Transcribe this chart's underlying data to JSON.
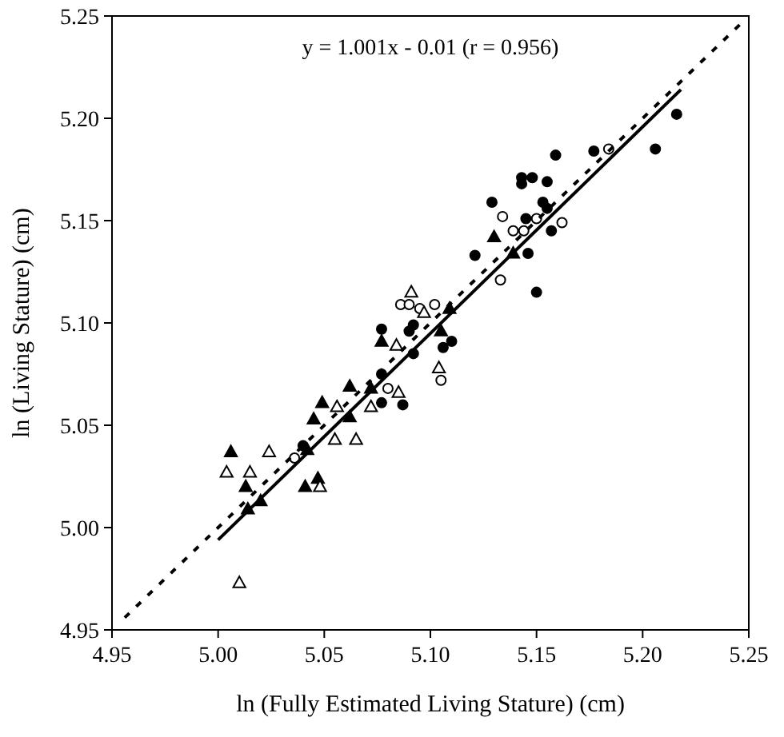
{
  "chart_data": {
    "type": "scatter",
    "xlabel": "ln (Fully Estimated Living Stature) (cm)",
    "ylabel": "ln (Living Stature) (cm)",
    "annotations": [
      "y = 1.001x - 0.01 (r = 0.956)"
    ],
    "xlim": [
      4.95,
      5.25
    ],
    "ylim": [
      4.95,
      5.25
    ],
    "xticks": [
      4.95,
      {
        "value": 5.0,
        "label": "5.00"
      },
      5.05,
      {
        "value": 5.1,
        "label": "5.10"
      },
      5.15,
      {
        "value": 5.2,
        "label": "5.20"
      },
      5.25
    ],
    "yticks": [
      4.95,
      {
        "value": 5.0,
        "label": "5.00"
      },
      5.05,
      {
        "value": 5.1,
        "label": "5.10"
      },
      5.15,
      {
        "value": 5.2,
        "label": "5.20"
      },
      5.25
    ],
    "grid": false,
    "series": [
      {
        "type": "scatter",
        "marker": "circle",
        "color": "#000000",
        "x": [
          5.216,
          5.206,
          5.177,
          5.159,
          5.155,
          5.148,
          5.143,
          5.143,
          5.129,
          5.153,
          5.155,
          5.145,
          5.157,
          5.146,
          5.15,
          5.121,
          5.11,
          5.106,
          5.077,
          5.087,
          5.077,
          5.077,
          5.09,
          5.092,
          5.04,
          5.092
        ],
        "values": [
          5.202,
          5.185,
          5.184,
          5.182,
          5.169,
          5.171,
          5.171,
          5.168,
          5.159,
          5.159,
          5.156,
          5.151,
          5.145,
          5.134,
          5.115,
          5.133,
          5.091,
          5.088,
          5.061,
          5.06,
          5.075,
          5.097,
          5.096,
          5.085,
          5.04,
          5.099
        ]
      },
      {
        "type": "scatter",
        "marker": "circle",
        "color": "#ffffff",
        "x": [
          5.133,
          5.162,
          5.134,
          5.15,
          5.184,
          5.139,
          5.105,
          5.086,
          5.09,
          5.102,
          5.095,
          5.08,
          5.036,
          5.144
        ],
        "values": [
          5.121,
          5.149,
          5.152,
          5.151,
          5.185,
          5.145,
          5.072,
          5.109,
          5.109,
          5.109,
          5.107,
          5.068,
          5.034,
          5.145
        ]
      },
      {
        "type": "scatter",
        "marker": "triangle",
        "color": "#000000",
        "x": [
          5.006,
          5.013,
          5.02,
          5.041,
          5.047,
          5.045,
          5.049,
          5.062,
          5.062,
          5.072,
          5.077,
          5.109,
          5.13,
          5.139,
          5.105,
          5.042,
          5.014
        ],
        "values": [
          5.037,
          5.02,
          5.013,
          5.02,
          5.024,
          5.053,
          5.061,
          5.069,
          5.054,
          5.068,
          5.091,
          5.107,
          5.142,
          5.134,
          5.096,
          5.038,
          5.009
        ]
      },
      {
        "type": "scatter",
        "marker": "triangle",
        "color": "#ffffff",
        "x": [
          5.01,
          5.004,
          5.015,
          5.024,
          5.048,
          5.055,
          5.065,
          5.056,
          5.072,
          5.085,
          5.104,
          5.091,
          5.084,
          5.097
        ],
        "values": [
          4.973,
          5.027,
          5.027,
          5.037,
          5.02,
          5.043,
          5.043,
          5.059,
          5.059,
          5.066,
          5.078,
          5.115,
          5.089,
          5.105
        ]
      },
      {
        "type": "line",
        "line_style": "solid",
        "marker": "none",
        "color": "#000000",
        "x": [
          5.0,
          5.218
        ],
        "values": [
          4.994,
          5.214
        ]
      },
      {
        "type": "line",
        "line_style": "dashed",
        "marker": "none",
        "color": "#000000",
        "x": [
          4.956,
          5.248
        ],
        "values": [
          4.956,
          5.248
        ]
      }
    ]
  }
}
